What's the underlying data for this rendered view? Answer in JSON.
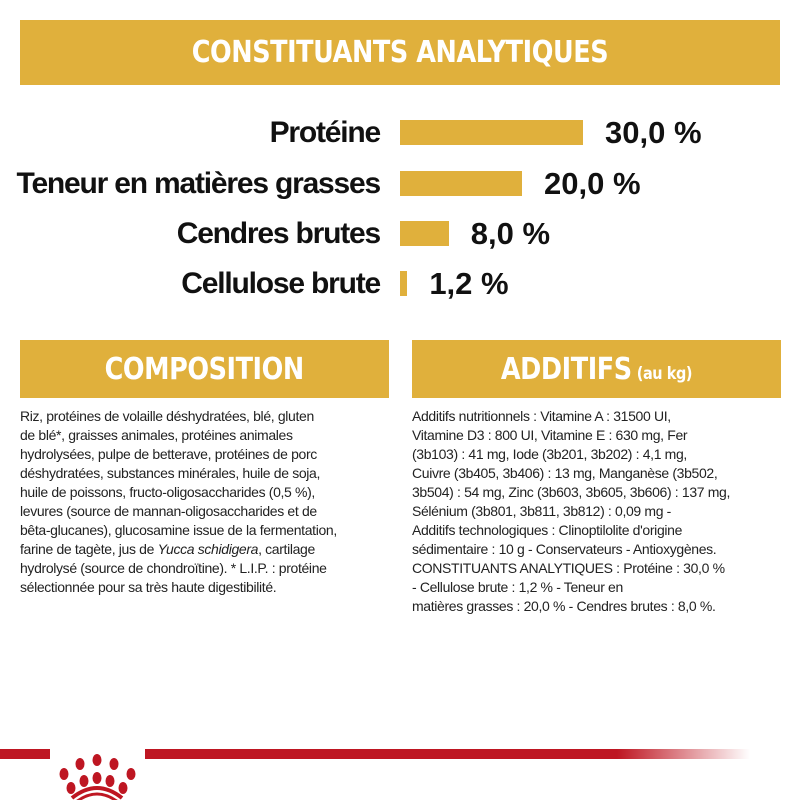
{
  "header": {
    "title": "CONSTITUANTS ANALYTIQUES"
  },
  "nutrients": [
    {
      "label": "Protéine",
      "value": 30.0,
      "display": "30,0 %"
    },
    {
      "label": "Teneur en matières grasses",
      "value": 20.0,
      "display": "20,0 %"
    },
    {
      "label": "Cendres brutes",
      "value": 8.0,
      "display": "8,0 %"
    },
    {
      "label": "Cellulose brute",
      "value": 1.2,
      "display": "1,2 %"
    }
  ],
  "composition": {
    "title": "COMPOSITION",
    "lines": [
      "Riz, protéines de volaille déshydratées, blé, gluten",
      "de blé*, graisses animales, protéines animales",
      "hydrolysées, pulpe de betterave, protéines de porc",
      "déshydratées, substances minérales, huile de soja,",
      "huile de poissons, fructo-oligosaccharides (0,5 %),",
      "levures (source de mannan-oligosaccharides et de",
      "bêta-glucanes), glucosamine issue de la fermentation,",
      "farine de tagète, jus de Yucca schidigera, cartilage",
      "hydrolysé (source de chondroïtine). * L.I.P. : protéine",
      "sélectionnée pour sa très haute digestibilité."
    ]
  },
  "additifs": {
    "title": "ADDITIFS",
    "subtitle": "(au kg)",
    "lines": [
      "Additifs nutritionnels : Vitamine A : 31500 UI,",
      "Vitamine D3 : 800 UI, Vitamine E : 630 mg, Fer",
      "(3b103) : 41 mg, Iode (3b201, 3b202) : 4,1 mg,",
      "Cuivre (3b405, 3b406) : 13 mg, Manganèse (3b502,",
      "3b504) : 54 mg, Zinc (3b603, 3b605, 3b606) : 137 mg,",
      "Sélénium (3b801, 3b811, 3b812) : 0,09 mg -",
      "Additifs technologiques : Clinoptilolite d'origine",
      "sédimentaire : 10 g - Conservateurs - Antioxygènes.",
      "CONSTITUANTS ANALYTIQUES : Protéine : 30,0 %",
      "- Cellulose brute : 1,2 % - Teneur en",
      "matières grasses : 20,0 % - Cendres brutes : 8,0 %."
    ]
  },
  "colors": {
    "gold": "#E0B03C",
    "red": "#BE1622",
    "text": "#1a1a1a"
  },
  "footer": {
    "logo": "royal-canin-crown-logo"
  }
}
